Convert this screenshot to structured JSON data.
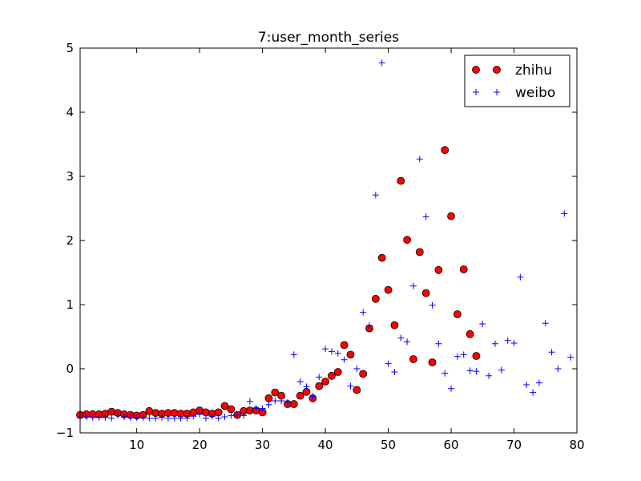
{
  "chart_data": {
    "type": "scatter",
    "title": "7:user_month_series",
    "xlabel": "",
    "ylabel": "",
    "xlim": [
      1,
      80
    ],
    "ylim": [
      -1,
      5
    ],
    "xticks": [
      10,
      20,
      30,
      40,
      50,
      60,
      70,
      80
    ],
    "yticks": [
      -1,
      0,
      1,
      2,
      3,
      4,
      5
    ],
    "grid": false,
    "legend_position": "top-right",
    "series": [
      {
        "name": "zhihu",
        "marker": "circle",
        "color": "#ff0000",
        "x": [
          1,
          2,
          3,
          4,
          5,
          6,
          7,
          8,
          9,
          10,
          11,
          12,
          13,
          14,
          15,
          16,
          17,
          18,
          19,
          20,
          21,
          22,
          23,
          24,
          25,
          26,
          27,
          28,
          29,
          30,
          31,
          32,
          33,
          34,
          35,
          36,
          37,
          38,
          39,
          40,
          41,
          42,
          43,
          44,
          45,
          46,
          47,
          48,
          49,
          50,
          51,
          52,
          53,
          54,
          55,
          56,
          57,
          58,
          59,
          60,
          61,
          62,
          63,
          64
        ],
        "y": [
          -0.72,
          -0.71,
          -0.71,
          -0.71,
          -0.7,
          -0.67,
          -0.69,
          -0.71,
          -0.72,
          -0.73,
          -0.72,
          -0.66,
          -0.69,
          -0.7,
          -0.69,
          -0.69,
          -0.7,
          -0.7,
          -0.68,
          -0.65,
          -0.68,
          -0.7,
          -0.68,
          -0.58,
          -0.63,
          -0.72,
          -0.66,
          -0.65,
          -0.65,
          -0.68,
          -0.46,
          -0.37,
          -0.42,
          -0.55,
          -0.55,
          -0.42,
          -0.36,
          -0.46,
          -0.27,
          -0.2,
          -0.11,
          -0.05,
          0.37,
          0.22,
          -0.33,
          -0.08,
          0.63,
          1.09,
          1.73,
          1.23,
          0.68,
          2.93,
          2.01,
          0.15,
          1.82,
          1.18,
          0.1,
          1.54,
          3.41,
          2.38,
          0.85,
          1.55,
          0.54,
          0.2
        ]
      },
      {
        "name": "weibo",
        "marker": "plus",
        "color": "#0000ff",
        "x": [
          1,
          2,
          3,
          4,
          5,
          6,
          7,
          8,
          9,
          10,
          11,
          12,
          13,
          14,
          15,
          16,
          17,
          18,
          19,
          20,
          21,
          22,
          23,
          24,
          25,
          26,
          27,
          28,
          29,
          30,
          31,
          32,
          33,
          34,
          35,
          36,
          37,
          38,
          39,
          40,
          41,
          42,
          43,
          44,
          45,
          46,
          47,
          48,
          49,
          50,
          51,
          52,
          53,
          54,
          55,
          56,
          57,
          58,
          59,
          60,
          61,
          62,
          63,
          64,
          65,
          66,
          67,
          68,
          69,
          70,
          71,
          72,
          73,
          74,
          75,
          76,
          77,
          78,
          79
        ],
        "y": [
          -0.76,
          -0.75,
          -0.76,
          -0.76,
          -0.76,
          -0.77,
          -0.73,
          -0.75,
          -0.76,
          -0.76,
          -0.76,
          -0.77,
          -0.77,
          -0.76,
          -0.77,
          -0.77,
          -0.77,
          -0.77,
          -0.74,
          -0.71,
          -0.77,
          -0.74,
          -0.77,
          -0.75,
          -0.73,
          -0.72,
          -0.73,
          -0.51,
          -0.62,
          -0.62,
          -0.56,
          -0.5,
          -0.5,
          -0.52,
          0.22,
          -0.2,
          -0.28,
          -0.43,
          -0.13,
          0.31,
          0.27,
          0.24,
          0.14,
          -0.27,
          0.0,
          0.88,
          0.67,
          2.71,
          4.77,
          0.08,
          -0.05,
          0.48,
          0.42,
          1.29,
          3.27,
          2.37,
          0.99,
          0.39,
          -0.07,
          -0.31,
          0.19,
          0.22,
          -0.03,
          -0.04,
          0.7,
          -0.11,
          0.39,
          -0.02,
          0.44,
          0.4,
          1.43,
          -0.25,
          -0.37,
          -0.22,
          0.71,
          0.26,
          0.0,
          2.42,
          0.18
        ]
      }
    ]
  }
}
